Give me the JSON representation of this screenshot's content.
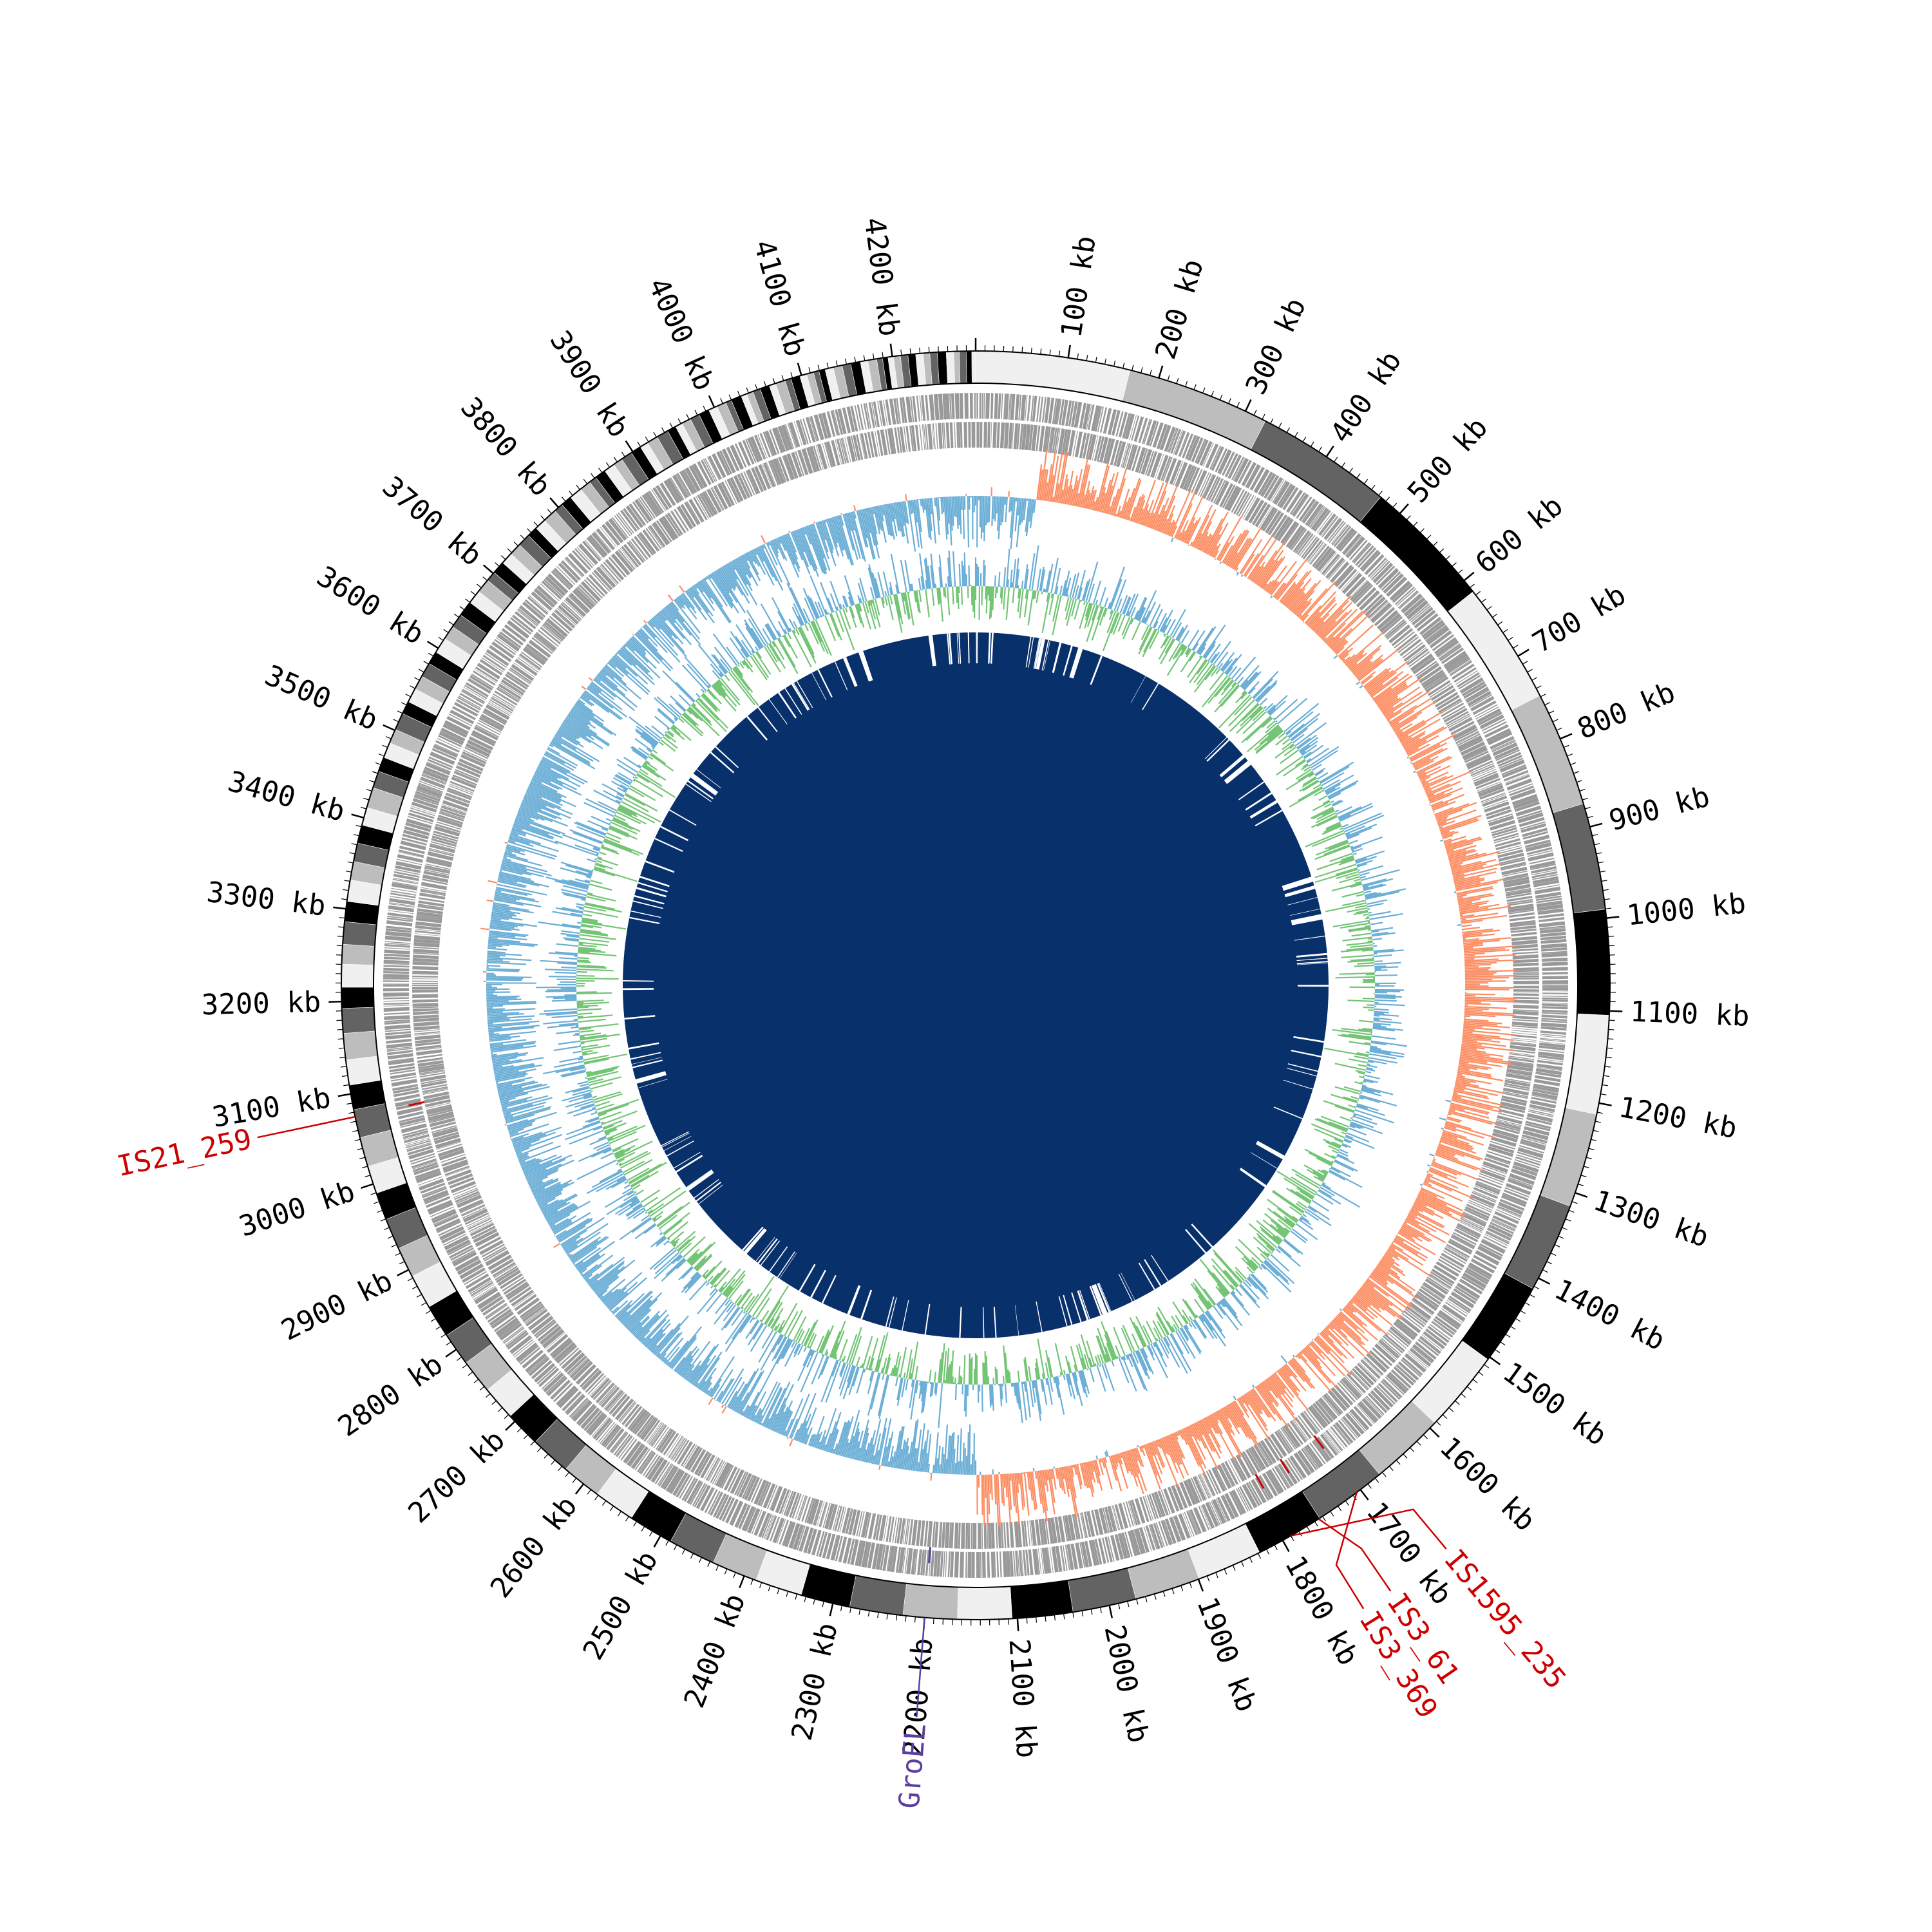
{
  "diagram": {
    "type": "circular-genome-map",
    "genome_length_kb": 4290,
    "axis": {
      "unit_suffix": "kb",
      "major_tick_step_kb": 100,
      "first_labeled_kb": 100,
      "last_labeled_kb": 4200
    },
    "tracks": [
      {
        "name": "size-bands",
        "colors": [
          "#f0f0f0",
          "#bdbdbd",
          "#636363",
          "#000000"
        ]
      },
      {
        "name": "gene-features",
        "color": "#999999"
      },
      {
        "name": "gc-skew",
        "positive_color": "#fc8d62",
        "negative_color": "#6baed6"
      },
      {
        "name": "gc-content",
        "above_color": "#6baed6",
        "below_color": "#74c476"
      },
      {
        "name": "coverage-blocks",
        "color": "#08306b"
      }
    ],
    "annotations": [
      {
        "label": "IS21_259",
        "position_kb": 3075,
        "color": "#cc0000"
      },
      {
        "label": "IS3_369",
        "position_kb": 1705,
        "color": "#cc0000"
      },
      {
        "label": "IS3_61",
        "position_kb": 1755,
        "color": "#cc0000"
      },
      {
        "label": "IS1595_235",
        "position_kb": 1790,
        "color": "#cc0000"
      },
      {
        "label": "GroEL",
        "position_kb": 2200,
        "color": "#5b3fa0"
      }
    ]
  }
}
